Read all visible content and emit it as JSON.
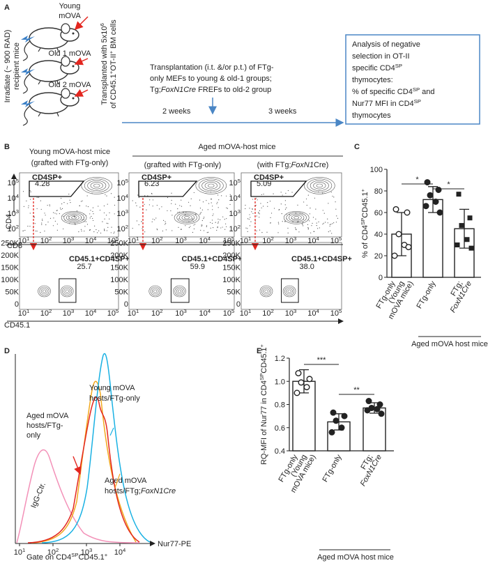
{
  "panel_a": {
    "label": "A",
    "recipient_lines": [
      "Irradiate (~ 900 RAD)",
      "recipient mice"
    ],
    "transplant_lines": [
      [
        "Transplanted with 5x10",
        {
          "t": "6",
          "sup": true
        }
      ],
      [
        "of CD45.1",
        {
          "t": "+",
          "sup": true
        },
        "OT-II",
        {
          "t": "+",
          "sup": true
        },
        " BM cells"
      ]
    ],
    "mice_lines": [
      [
        "Young",
        "mOVA"
      ],
      [
        "Old 1 mOVA"
      ],
      [
        "Old 2 mOVA"
      ]
    ],
    "procedure_lines": [
      "Transplantation (i.t. &/or p.t.) of FTg-",
      "only MEFs to young & old-1 groups;",
      [
        "Tg;",
        {
          "t": "FoxN1Cre",
          "i": true
        },
        " FREFs to old-2 group"
      ]
    ],
    "weeks": [
      "2 weeks",
      "3 weeks"
    ],
    "analysis_lines": [
      "Analysis of negative",
      "selection in OT-II",
      [
        "specific CD4",
        {
          "t": "SP",
          "sup": true
        }
      ],
      "thymocytes:",
      [
        "% of specific CD4",
        {
          "t": "SP",
          "sup": true
        },
        " and"
      ],
      [
        "Nur77 MFI in CD4",
        {
          "t": "SP",
          "sup": true
        }
      ],
      "thymocytes"
    ]
  },
  "panel_b": {
    "label": "B",
    "young_lines": [
      "Young mOVA-host mice",
      "(grafted with FTg-only)"
    ],
    "aged": "Aged mOVA-host mice",
    "aged_groups": [
      "(grafted with FTg-only)",
      [
        "(with FTg;",
        {
          "t": "FoxN1",
          "i": true
        },
        "Cre)"
      ]
    ],
    "axis_cd4": "CD4",
    "axis_cd8": "CD8",
    "axis_cd45": "CD45.1",
    "gate_top": "CD4SP+",
    "gate_top_values": [
      "4.28",
      "6.23",
      "5.09"
    ],
    "gate_bottom": "CD45.1+CD4SP+",
    "gate_bottom_values": [
      "25.7",
      "59.9",
      "38.0"
    ],
    "log_base": "10",
    "log_exponents": [
      1,
      2,
      3,
      4,
      5
    ],
    "linear_ticks": [
      "0",
      "50K",
      "100K",
      "150K",
      "200K",
      "250K"
    ]
  },
  "panel_d": {
    "label": "D",
    "curves": [
      {
        "name": [
          "Aged mOVA",
          "hosts/FTg-",
          "only"
        ],
        "color": "#e3261f"
      },
      {
        "name": [
          "Young mOVA",
          "hosts/FTg-only"
        ],
        "color": "#19b1e3"
      },
      {
        "name": [
          "Aged mOVA",
          [
            "hosts/FTg;",
            {
              "t": "FoxN1Cre",
              "i": true
            }
          ]
        ],
        "color": "#f2a81d"
      },
      {
        "name": [
          "IgG-Ctr."
        ],
        "color": "#f391b8"
      }
    ],
    "log_base": "10",
    "log_exponents": [
      1,
      2,
      3,
      4
    ],
    "xlabel": "Nur77-PE",
    "footer": [
      "Gate on CD4",
      {
        "t": "SP",
        "sup": true
      },
      "CD45.1",
      {
        "t": "+",
        "sup": true
      }
    ]
  },
  "chart_data": [
    {
      "type": "bar",
      "label": "C",
      "ylabel": [
        "% of CD4",
        {
          "t": "SP",
          "sup": true
        },
        "CD45.1",
        {
          "t": "+",
          "sup": true
        }
      ],
      "categories": [
        [
          "FTg-only",
          "(Young",
          "mOVA mice)"
        ],
        [
          "FTg-only"
        ],
        [
          "FTg;",
          [
            {
              "t": "FoxN1Cre",
              "i": true
            }
          ]
        ]
      ],
      "values": [
        40,
        72,
        45
      ],
      "errors": [
        20,
        12,
        18
      ],
      "points": [
        [
          63,
          60,
          40,
          30,
          20,
          28
        ],
        [
          88,
          81,
          76,
          70,
          66,
          60
        ],
        [
          77,
          55,
          48,
          35,
          30,
          27
        ]
      ],
      "markers": [
        "open-circle",
        "circle",
        "square"
      ],
      "group_label": "Aged mOVA host mice",
      "significance": [
        {
          "from": 0,
          "to": 1,
          "label": "*"
        },
        {
          "from": 1,
          "to": 2,
          "label": "*"
        }
      ],
      "ylim": [
        0,
        100
      ],
      "yticks": [
        0,
        20,
        40,
        60,
        80,
        100
      ]
    },
    {
      "type": "bar",
      "label": "E",
      "ylabel": [
        "RQ-MFI of Nur77 in CD4",
        {
          "t": "SP",
          "sup": true
        },
        "CD45.1",
        {
          "t": "+",
          "sup": true
        }
      ],
      "categories": [
        [
          "FTg-only",
          "(Young",
          "mOVA mice)"
        ],
        [
          "FTg-only"
        ],
        [
          "FTg;",
          [
            {
              "t": "FoxN1Cre",
              "i": true
            }
          ]
        ]
      ],
      "values": [
        1.0,
        0.65,
        0.77
      ],
      "errors": [
        0.1,
        0.07,
        0.045
      ],
      "points": [
        [
          1.07,
          1.02,
          0.99,
          0.95,
          0.9
        ],
        [
          0.73,
          0.7,
          0.66,
          0.6,
          0.56
        ],
        [
          0.83,
          0.8,
          0.77,
          0.76,
          0.75,
          0.72
        ]
      ],
      "markers": [
        "open-circle",
        "circle",
        "circle"
      ],
      "group_label": "Aged mOVA host mice",
      "significance": [
        {
          "from": 0,
          "to": 1,
          "label": "***"
        },
        {
          "from": 1,
          "to": 2,
          "label": "**"
        }
      ],
      "ylim": [
        0.4,
        1.2
      ],
      "yticks": [
        0.4,
        0.6,
        0.8,
        {
          "value": 1,
          "label": "1.0"
        },
        1.2
      ]
    }
  ]
}
